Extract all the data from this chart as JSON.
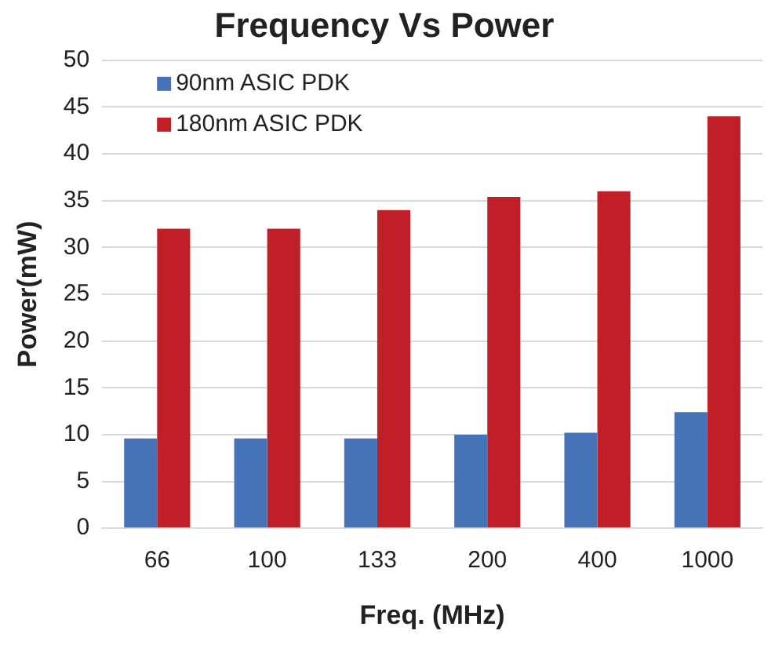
{
  "chart_data": {
    "type": "bar",
    "title": "Frequency Vs Power",
    "xlabel": "Freq. (MHz)",
    "ylabel": "Power(mW)",
    "categories": [
      "66",
      "100",
      "133",
      "200",
      "400",
      "1000"
    ],
    "series": [
      {
        "name": "90nm ASIC PDK",
        "color": "#4672b8",
        "values": [
          9.6,
          9.6,
          9.6,
          10,
          10.2,
          12.4
        ]
      },
      {
        "name": "180nm ASIC PDK",
        "color": "#c01f27",
        "values": [
          32,
          32,
          34,
          35.4,
          36,
          44
        ]
      }
    ],
    "ylim": [
      0,
      50
    ],
    "yticks": [
      0,
      5,
      10,
      15,
      20,
      25,
      30,
      35,
      40,
      45,
      50
    ],
    "grid": "y",
    "legend": "top left"
  }
}
